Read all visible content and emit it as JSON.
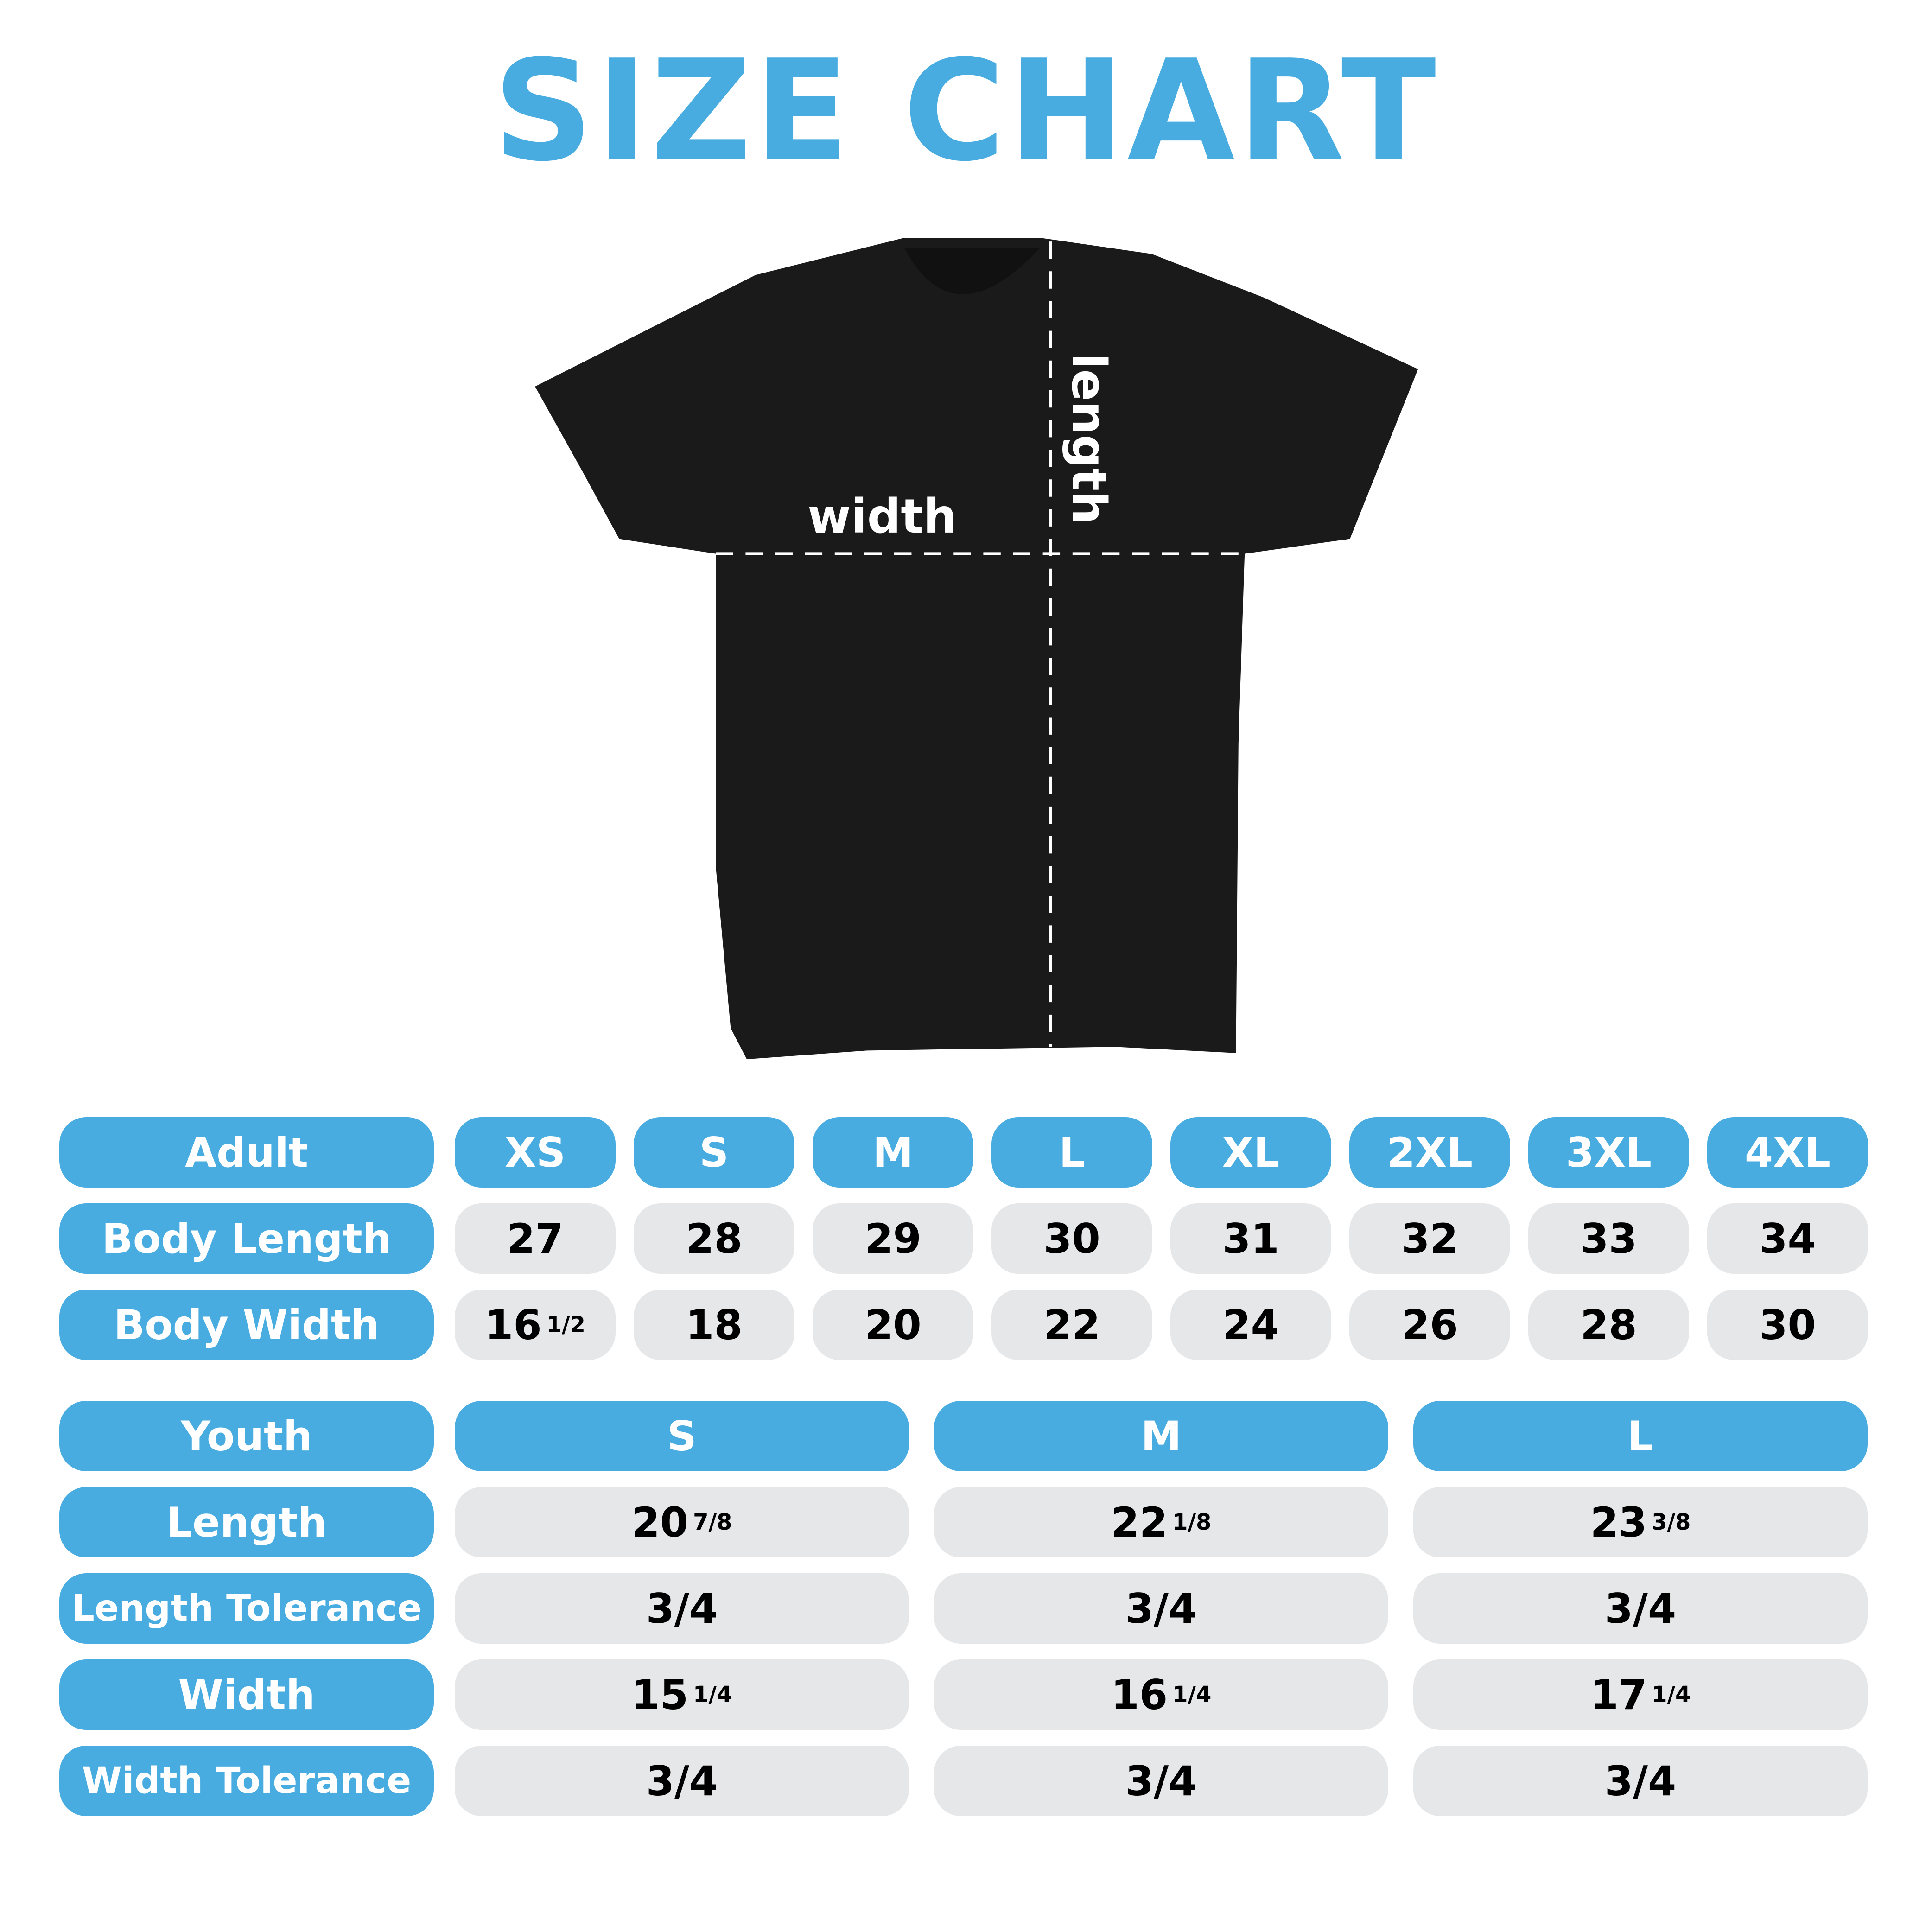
{
  "title": "SIZE CHART",
  "diagram": {
    "width_label": "width",
    "length_label": "length"
  },
  "colors": {
    "accent": "#48ACE0",
    "cell": "#E6E7E8",
    "shirt": "#1A1A1A"
  },
  "adult": {
    "header": "Adult",
    "sizes": [
      "XS",
      "S",
      "M",
      "L",
      "XL",
      "2XL",
      "3XL",
      "4XL"
    ],
    "rows": [
      {
        "label": "Body Length",
        "values": [
          [
            "27",
            ""
          ],
          [
            "28",
            ""
          ],
          [
            "29",
            ""
          ],
          [
            "30",
            ""
          ],
          [
            "31",
            ""
          ],
          [
            "32",
            ""
          ],
          [
            "33",
            ""
          ],
          [
            "34",
            ""
          ]
        ]
      },
      {
        "label": "Body Width",
        "values": [
          [
            "16",
            "1/2"
          ],
          [
            "18",
            ""
          ],
          [
            "20",
            ""
          ],
          [
            "22",
            ""
          ],
          [
            "24",
            ""
          ],
          [
            "26",
            ""
          ],
          [
            "28",
            ""
          ],
          [
            "30",
            ""
          ]
        ]
      }
    ]
  },
  "youth": {
    "header": "Youth",
    "sizes": [
      "S",
      "M",
      "L"
    ],
    "rows": [
      {
        "label": "Length",
        "values": [
          [
            "20",
            "7/8"
          ],
          [
            "22",
            "1/8"
          ],
          [
            "23",
            "3/8"
          ]
        ]
      },
      {
        "label": "Length Tolerance",
        "values": [
          [
            "3/4",
            ""
          ],
          [
            "3/4",
            ""
          ],
          [
            "3/4",
            ""
          ]
        ]
      },
      {
        "label": "Width",
        "values": [
          [
            "15",
            "1/4"
          ],
          [
            "16",
            "1/4"
          ],
          [
            "17",
            "1/4"
          ]
        ]
      },
      {
        "label": "Width Tolerance",
        "values": [
          [
            "3/4",
            ""
          ],
          [
            "3/4",
            ""
          ],
          [
            "3/4",
            ""
          ]
        ]
      }
    ]
  }
}
